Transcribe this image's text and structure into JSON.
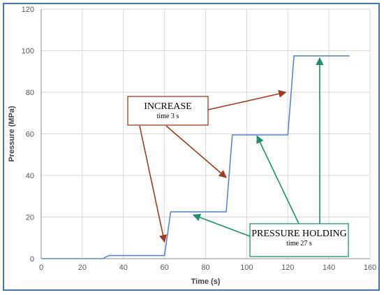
{
  "colors": {
    "frame": "#4a72b0",
    "series": "#5b86c9",
    "grid": "#d9d9d9",
    "increase": "#a23a22",
    "holding": "#1f8f6e"
  },
  "chart_data": {
    "type": "line",
    "title": "",
    "xlabel": "Time (s)",
    "ylabel": "Pressure (MPa)",
    "xlim": [
      0,
      160
    ],
    "ylim": [
      0,
      120
    ],
    "xticks": [
      0,
      20,
      40,
      60,
      80,
      100,
      120,
      140,
      160
    ],
    "yticks": [
      0,
      20,
      40,
      60,
      80,
      100,
      120
    ],
    "grid": true,
    "series": [
      {
        "x": [
          0,
          30,
          33,
          60,
          63,
          90,
          93,
          120,
          123,
          150
        ],
        "y": [
          0,
          0,
          1.5,
          1.5,
          22.5,
          22.5,
          59.5,
          59.5,
          97.5,
          97.5
        ]
      }
    ],
    "annotations": [
      {
        "title": "INCREASE",
        "subtitle": "time 3 s",
        "color": "#a23a22",
        "arrow_targets": [
          [
            60,
            8
          ],
          [
            90,
            39
          ],
          [
            119,
            80
          ]
        ]
      },
      {
        "title": "PRESSURE HOLDING",
        "subtitle": "time 27 s",
        "color": "#1f8f6e",
        "arrow_targets": [
          [
            74,
            21
          ],
          [
            105,
            59
          ],
          [
            135.5,
            96.5
          ]
        ]
      }
    ]
  }
}
